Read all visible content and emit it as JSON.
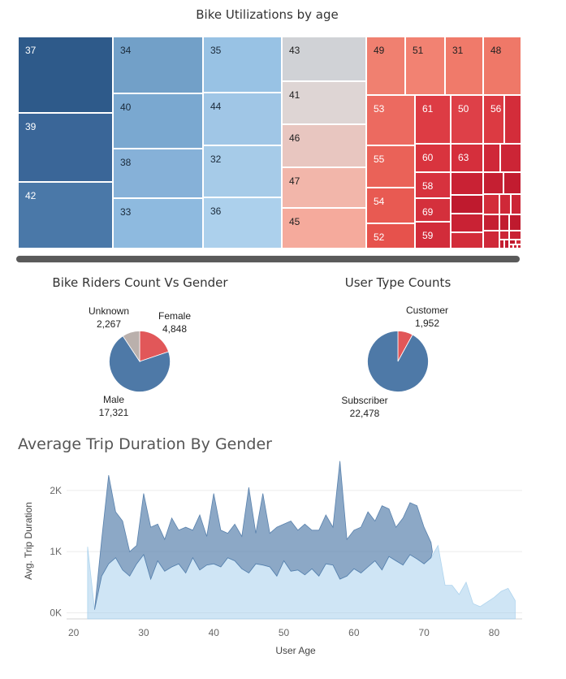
{
  "treemap": {
    "title": "Bike Utilizations by age",
    "tiles": [
      {
        "label": "37",
        "color": "#2e5a8a",
        "text": "#ffffff"
      },
      {
        "label": "39",
        "color": "#3a6698",
        "text": "#ffffff"
      },
      {
        "label": "42",
        "color": "#4a78a8",
        "text": "#ffffff"
      },
      {
        "label": "34",
        "color": "#72a0c8",
        "text": "#1a2a3a"
      },
      {
        "label": "40",
        "color": "#7aa8d0",
        "text": "#1a2a3a"
      },
      {
        "label": "38",
        "color": "#86b1d8",
        "text": "#1a2a3a"
      },
      {
        "label": "33",
        "color": "#8ebadf",
        "text": "#1a2a3a"
      },
      {
        "label": "35",
        "color": "#98c2e4",
        "text": "#1a2a3a"
      },
      {
        "label": "44",
        "color": "#a0c6e6",
        "text": "#1a2a3a"
      },
      {
        "label": "32",
        "color": "#a6cbe8",
        "text": "#1a2a3a"
      },
      {
        "label": "36",
        "color": "#acd0ec",
        "text": "#1a2a3a"
      },
      {
        "label": "43",
        "color": "#d0d2d6",
        "text": "#222222"
      },
      {
        "label": "41",
        "color": "#ded5d4",
        "text": "#222222"
      },
      {
        "label": "46",
        "color": "#e8c6c0",
        "text": "#222222"
      },
      {
        "label": "47",
        "color": "#f2b6aa",
        "text": "#222222"
      },
      {
        "label": "45",
        "color": "#f5aa9c",
        "text": "#222222"
      },
      {
        "label": "49",
        "color": "#f08070",
        "text": "#222222"
      },
      {
        "label": "51",
        "color": "#f28272",
        "text": "#222222"
      },
      {
        "label": "31",
        "color": "#f07a6a",
        "text": "#222222"
      },
      {
        "label": "48",
        "color": "#ef7868",
        "text": "#222222"
      },
      {
        "label": "53",
        "color": "#ec6a60",
        "text": "#ffffff"
      },
      {
        "label": "55",
        "color": "#ea6258",
        "text": "#ffffff"
      },
      {
        "label": "54",
        "color": "#e85a52",
        "text": "#ffffff"
      },
      {
        "label": "52",
        "color": "#e6524c",
        "text": "#ffffff"
      },
      {
        "label": "61",
        "color": "#dd3c44",
        "text": "#ffffff"
      },
      {
        "label": "50",
        "color": "#de4048",
        "text": "#ffffff"
      },
      {
        "label": "56",
        "color": "#dc3a42",
        "text": "#ffffff"
      },
      {
        "label": "60",
        "color": "#d9343e",
        "text": "#ffffff"
      },
      {
        "label": "63",
        "color": "#d52f3c",
        "text": "#ffffff"
      },
      {
        "label": "58",
        "color": "#d7323e",
        "text": "#ffffff"
      },
      {
        "label": "69",
        "color": "#d4303c",
        "text": "#ffffff"
      },
      {
        "label": "59",
        "color": "#d22c3a",
        "text": "#ffffff"
      }
    ],
    "filler_colors": [
      "#d32d3a",
      "#cf2838",
      "#cc2536",
      "#c92234",
      "#c51f32",
      "#c21c30",
      "#bf1a2e"
    ]
  },
  "gender_pie": {
    "title": "Bike Riders Count Vs Gender",
    "slices": [
      {
        "label": "Female",
        "value": 4848,
        "value_text": "4,848",
        "color": "#e15759"
      },
      {
        "label": "Male",
        "value": 17321,
        "value_text": "17,321",
        "color": "#4e79a7"
      },
      {
        "label": "Unknown",
        "value": 2267,
        "value_text": "2,267",
        "color": "#bab0ac"
      }
    ]
  },
  "usertype_pie": {
    "title": "User Type Counts",
    "slices": [
      {
        "label": "Customer",
        "value": 1952,
        "value_text": "1,952",
        "color": "#e15759"
      },
      {
        "label": "Subscriber",
        "value": 22478,
        "value_text": "22,478",
        "color": "#4e79a7"
      }
    ]
  },
  "chart_data": {
    "type": "area",
    "title": "Average Trip Duration By Gender",
    "xlabel": "User Age",
    "ylabel": "Avg. Trip Duration",
    "xlim": [
      19,
      84
    ],
    "ylim": [
      -100,
      2450
    ],
    "x_ticks": [
      20,
      30,
      40,
      50,
      60,
      70,
      80
    ],
    "y_ticks": [
      {
        "value": 0,
        "label": "0K"
      },
      {
        "value": 1000,
        "label": "1K"
      },
      {
        "value": 2000,
        "label": "2K"
      }
    ],
    "grid": true,
    "series": [
      {
        "color": "#4e79a7",
        "opacity": 0.65,
        "points": [
          [
            23,
            50
          ],
          [
            24,
            1200
          ],
          [
            25,
            2250
          ],
          [
            26,
            1650
          ],
          [
            27,
            1500
          ],
          [
            28,
            1000
          ],
          [
            29,
            1100
          ],
          [
            30,
            1950
          ],
          [
            31,
            1400
          ],
          [
            32,
            1450
          ],
          [
            33,
            1200
          ],
          [
            34,
            1550
          ],
          [
            35,
            1350
          ],
          [
            36,
            1400
          ],
          [
            37,
            1350
          ],
          [
            38,
            1600
          ],
          [
            39,
            1250
          ],
          [
            40,
            1950
          ],
          [
            41,
            1350
          ],
          [
            42,
            1300
          ],
          [
            43,
            1450
          ],
          [
            44,
            1250
          ],
          [
            45,
            2050
          ],
          [
            46,
            1300
          ],
          [
            47,
            1950
          ],
          [
            48,
            1300
          ],
          [
            49,
            1400
          ],
          [
            50,
            1450
          ],
          [
            51,
            1500
          ],
          [
            52,
            1350
          ],
          [
            53,
            1450
          ],
          [
            54,
            1350
          ],
          [
            55,
            1350
          ],
          [
            56,
            1600
          ],
          [
            57,
            1400
          ],
          [
            58,
            2480
          ],
          [
            59,
            1200
          ],
          [
            60,
            1350
          ],
          [
            61,
            1400
          ],
          [
            62,
            1650
          ],
          [
            63,
            1500
          ],
          [
            64,
            1750
          ],
          [
            65,
            1700
          ],
          [
            66,
            1400
          ],
          [
            67,
            1550
          ],
          [
            68,
            1800
          ],
          [
            69,
            1750
          ],
          [
            70,
            1400
          ],
          [
            71,
            1150
          ],
          [
            71.2,
            1000
          ],
          [
            71,
            900
          ],
          [
            70,
            800
          ],
          [
            69,
            880
          ],
          [
            68,
            950
          ],
          [
            67,
            780
          ],
          [
            66,
            850
          ],
          [
            65,
            920
          ],
          [
            64,
            700
          ],
          [
            63,
            850
          ],
          [
            62,
            750
          ],
          [
            61,
            650
          ],
          [
            60,
            720
          ],
          [
            59,
            600
          ],
          [
            58,
            550
          ],
          [
            57,
            780
          ],
          [
            56,
            800
          ],
          [
            55,
            600
          ],
          [
            54,
            720
          ],
          [
            53,
            620
          ],
          [
            52,
            700
          ],
          [
            51,
            680
          ],
          [
            50,
            850
          ],
          [
            49,
            600
          ],
          [
            48,
            750
          ],
          [
            47,
            780
          ],
          [
            46,
            800
          ],
          [
            45,
            650
          ],
          [
            44,
            720
          ],
          [
            43,
            850
          ],
          [
            42,
            900
          ],
          [
            41,
            750
          ],
          [
            40,
            800
          ],
          [
            39,
            780
          ],
          [
            38,
            700
          ],
          [
            37,
            900
          ],
          [
            36,
            650
          ],
          [
            35,
            800
          ],
          [
            34,
            750
          ],
          [
            33,
            680
          ],
          [
            32,
            850
          ],
          [
            31,
            550
          ],
          [
            30,
            950
          ],
          [
            29,
            800
          ],
          [
            28,
            600
          ],
          [
            27,
            700
          ],
          [
            26,
            900
          ],
          [
            25,
            800
          ],
          [
            24,
            600
          ],
          [
            23,
            50
          ]
        ]
      },
      {
        "color": "#a8d0ec",
        "opacity": 0.55,
        "points": [
          [
            22,
            1080
          ],
          [
            23,
            50
          ],
          [
            24,
            600
          ],
          [
            25,
            800
          ],
          [
            26,
            900
          ],
          [
            27,
            700
          ],
          [
            28,
            600
          ],
          [
            29,
            800
          ],
          [
            30,
            950
          ],
          [
            31,
            550
          ],
          [
            32,
            850
          ],
          [
            33,
            680
          ],
          [
            34,
            750
          ],
          [
            35,
            800
          ],
          [
            36,
            650
          ],
          [
            37,
            900
          ],
          [
            38,
            700
          ],
          [
            39,
            780
          ],
          [
            40,
            800
          ],
          [
            41,
            750
          ],
          [
            42,
            900
          ],
          [
            43,
            850
          ],
          [
            44,
            720
          ],
          [
            45,
            650
          ],
          [
            46,
            800
          ],
          [
            47,
            780
          ],
          [
            48,
            750
          ],
          [
            49,
            600
          ],
          [
            50,
            850
          ],
          [
            51,
            680
          ],
          [
            52,
            700
          ],
          [
            53,
            620
          ],
          [
            54,
            720
          ],
          [
            55,
            600
          ],
          [
            56,
            800
          ],
          [
            57,
            780
          ],
          [
            58,
            550
          ],
          [
            59,
            600
          ],
          [
            60,
            720
          ],
          [
            61,
            650
          ],
          [
            62,
            750
          ],
          [
            63,
            850
          ],
          [
            64,
            700
          ],
          [
            65,
            920
          ],
          [
            66,
            850
          ],
          [
            67,
            780
          ],
          [
            68,
            950
          ],
          [
            69,
            880
          ],
          [
            70,
            800
          ],
          [
            71,
            900
          ],
          [
            72,
            1100
          ],
          [
            73,
            450
          ],
          [
            74,
            450
          ],
          [
            75,
            300
          ],
          [
            76,
            500
          ],
          [
            77,
            150
          ],
          [
            78,
            100
          ],
          [
            80,
            250
          ],
          [
            81,
            350
          ],
          [
            82,
            400
          ],
          [
            83,
            200
          ]
        ]
      }
    ]
  }
}
